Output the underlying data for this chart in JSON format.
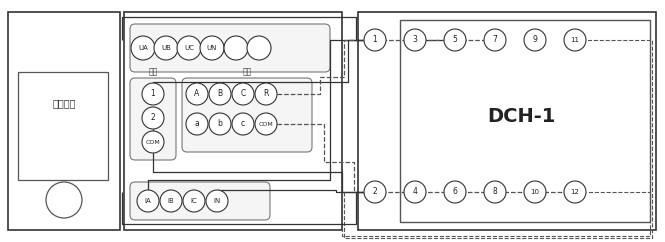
{
  "bg": "white",
  "lc": "#333333",
  "dch_top_nums": [
    "1",
    "3",
    "5",
    "7",
    "9",
    "11"
  ],
  "dch_bot_nums": [
    "2",
    "4",
    "6",
    "8",
    "10",
    "12"
  ],
  "vol_labels": [
    "UA",
    "UB",
    "UC",
    "UN",
    "",
    ""
  ],
  "out_labels": [
    "1",
    "2",
    "COM"
  ],
  "in_top_labels": [
    "A",
    "B",
    "C",
    "R"
  ],
  "in_bot_labels": [
    "a",
    "b",
    "c",
    "COM"
  ],
  "cur_labels": [
    "IA",
    "IB",
    "IC",
    "IN"
  ],
  "dch_label": "DCH-1",
  "device_label": "直流试验",
  "open_in_text": "开入",
  "open_out_text": "开出"
}
